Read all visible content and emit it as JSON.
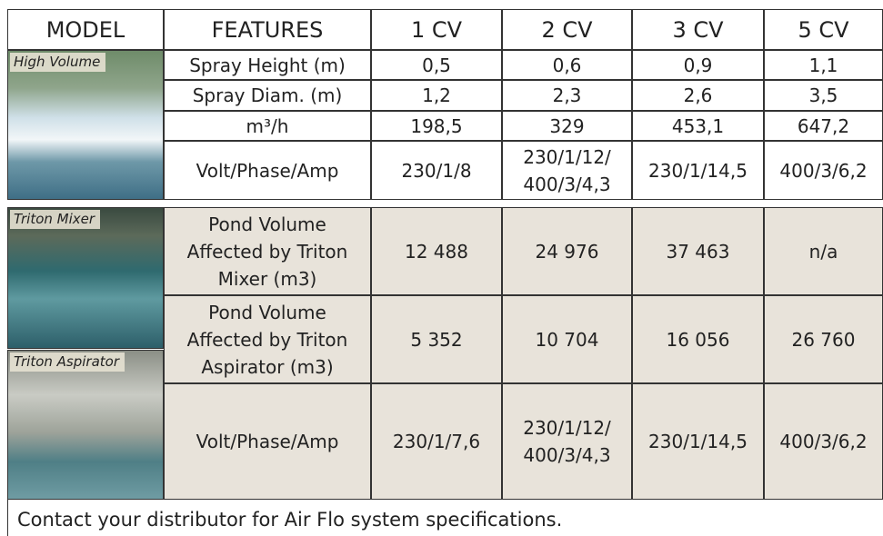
{
  "header": [
    "MODEL",
    "FEATURES",
    "1 CV",
    "2 CV",
    "3 CV",
    "5 CV"
  ],
  "section1": {
    "image_label": "High Volume",
    "rows": [
      [
        "Spray Height (m)",
        "0,5",
        "0,6",
        "0,9",
        "1,1"
      ],
      [
        "Spray Diam. (m)",
        "1,2",
        "2,3",
        "2,6",
        "3,5"
      ],
      [
        "m³/h",
        "198,5",
        "329",
        "453,1",
        "647,2"
      ],
      [
        "Volt/Phase/Amp",
        "230/1/8",
        [
          "230/1/12/",
          "400/3/4,3"
        ],
        "230/1/14,5",
        "400/3/6,2"
      ]
    ]
  },
  "section2": {
    "image_labels": [
      "Triton Mixer",
      "Triton Aspirator"
    ],
    "rows": [
      [
        [
          "Pond Volume",
          "Affected by Triton",
          "Mixer (m3)"
        ],
        "12 488",
        "24 976",
        "37 463",
        "n/a"
      ],
      [
        [
          "Pond Volume",
          "Affected by Triton",
          "Aspirator (m3)"
        ],
        "5 352",
        "10 704",
        "16 056",
        "26 760"
      ],
      [
        "Volt/Phase/Amp",
        "230/1/7,6",
        [
          "230/1/12/",
          "400/3/4,3"
        ],
        "230/1/14,5",
        "400/3/6,2"
      ]
    ]
  },
  "footer": "Contact your distributor for Air Flo system specifications."
}
